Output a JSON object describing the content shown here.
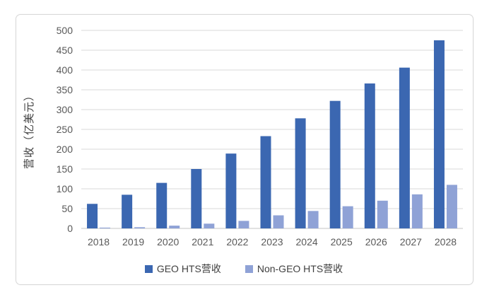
{
  "figure": {
    "ylabel": "营收（亿美元）"
  },
  "chart_data": {
    "type": "bar",
    "title": "",
    "xlabel": "",
    "ylabel": "营收（亿美元）",
    "categories": [
      "2018",
      "2019",
      "2020",
      "2021",
      "2022",
      "2023",
      "2024",
      "2025",
      "2026",
      "2027",
      "2028"
    ],
    "series": [
      {
        "name": "GEO HTS营收",
        "color": "#3b67b1",
        "values": [
          62,
          85,
          115,
          150,
          189,
          233,
          278,
          322,
          366,
          406,
          475
        ]
      },
      {
        "name": "Non-GEO HTS营收",
        "color": "#8fa2d6",
        "values": [
          2,
          3,
          7,
          12,
          19,
          33,
          44,
          56,
          70,
          86,
          110
        ]
      }
    ],
    "ylim": [
      0,
      500
    ],
    "ytick_step": 50,
    "grid": true,
    "gridline_color": "#d9d9d9",
    "axis_text_color": "#595959",
    "legend_position": "bottom"
  }
}
